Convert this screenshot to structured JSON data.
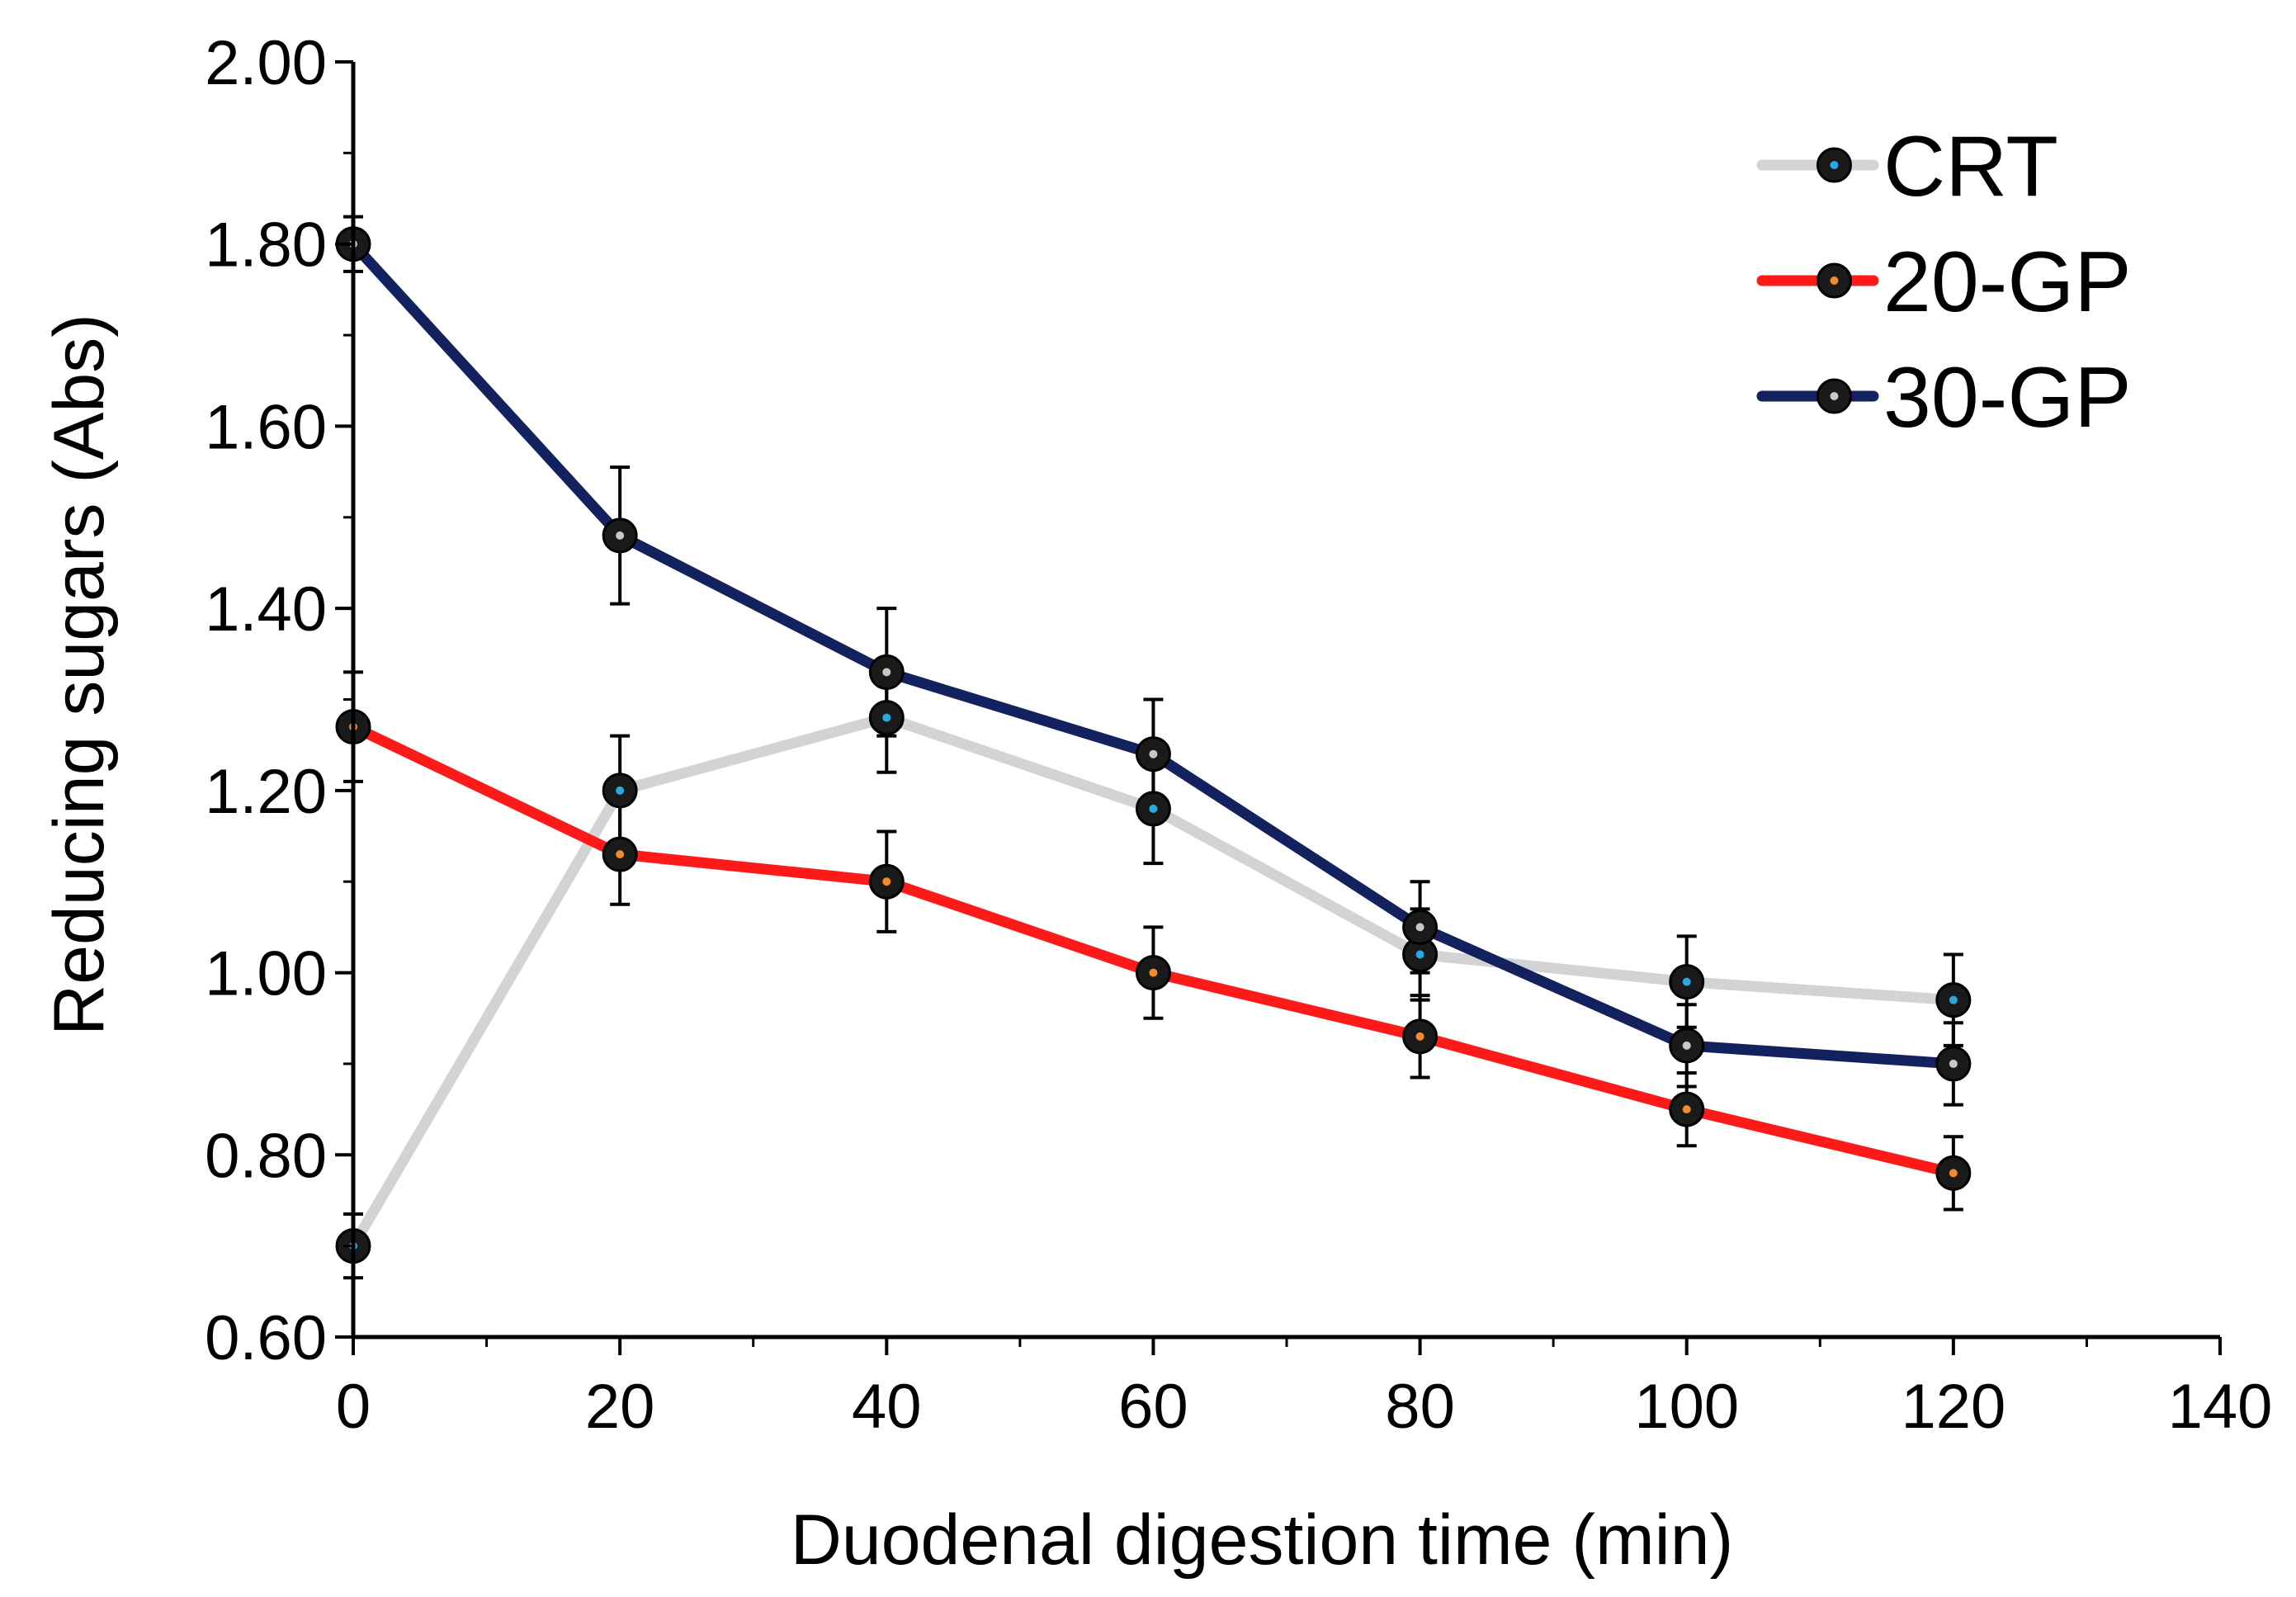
{
  "chart_data": {
    "type": "line",
    "title": "",
    "xlabel": "Duodenal digestion time (min)",
    "ylabel": "Reducing sugars (Abs)",
    "xlim": [
      0,
      140
    ],
    "ylim": [
      0.6,
      2.0
    ],
    "x_ticks": [
      0,
      20,
      40,
      60,
      80,
      100,
      120,
      140
    ],
    "x_tick_labels": [
      "0",
      "20",
      "40",
      "60",
      "80",
      "100",
      "120",
      "140"
    ],
    "y_ticks": [
      0.6,
      0.8,
      1.0,
      1.2,
      1.4,
      1.6,
      1.8,
      2.0
    ],
    "y_tick_labels": [
      "0.60",
      "0.80",
      "1.00",
      "1.20",
      "1.40",
      "1.60",
      "1.80",
      "2.00"
    ],
    "grid": false,
    "legend_position": "top-right",
    "x": [
      0,
      20,
      40,
      60,
      80,
      100,
      120
    ],
    "series": [
      {
        "name": "CRT",
        "color": "#d3d3d3",
        "marker_center_color": "#29a9e0",
        "values": [
          0.7,
          1.2,
          1.28,
          1.18,
          1.02,
          0.99,
          0.97
        ],
        "errors": [
          0.035,
          0.06,
          0.06,
          0.06,
          0.05,
          0.05,
          0.05
        ]
      },
      {
        "name": "20-GP",
        "color": "#ff1a1a",
        "marker_center_color": "#f28a2e",
        "values": [
          1.27,
          1.13,
          1.1,
          1.0,
          0.93,
          0.85,
          0.78
        ],
        "errors": [
          0.06,
          0.055,
          0.055,
          0.05,
          0.045,
          0.04,
          0.04
        ]
      },
      {
        "name": "30-GP",
        "color": "#13215e",
        "marker_center_color": "#c8c8c8",
        "values": [
          1.8,
          1.48,
          1.33,
          1.24,
          1.05,
          0.92,
          0.9
        ],
        "errors": [
          0.03,
          0.075,
          0.07,
          0.06,
          0.05,
          0.045,
          0.045
        ]
      }
    ]
  }
}
